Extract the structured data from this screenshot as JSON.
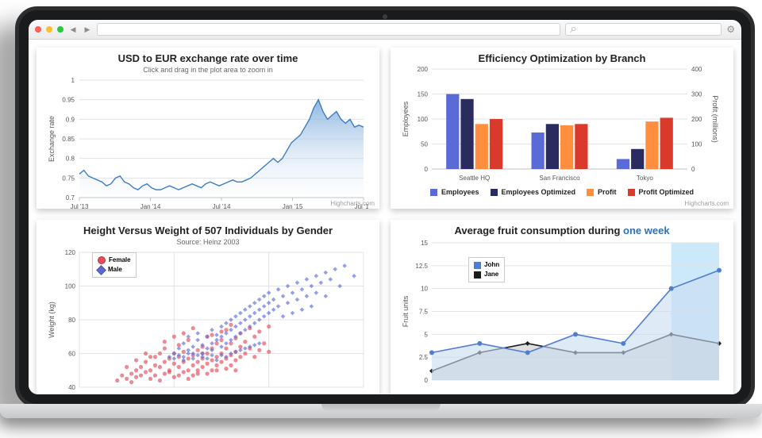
{
  "browser": {
    "dots": [
      "#ff5f57",
      "#ffbd2e",
      "#28c940"
    ],
    "search_glyph": "⌕"
  },
  "exchange": {
    "type": "area",
    "title": "USD to EUR exchange rate over time",
    "subtitle": "Click and drag in the plot area to zoom in",
    "ylabel": "Exchange rate",
    "ylabel_fontsize": 9,
    "xticks": [
      "Jul '13",
      "Jan '14",
      "Jul '14",
      "Jan '15",
      "Jul '15"
    ],
    "yticks": [
      0.7,
      0.75,
      0.8,
      0.85,
      0.9,
      0.95,
      1
    ],
    "ylim": [
      0.7,
      1.0
    ],
    "line_color": "#3e7cc0",
    "fill_top": "#7aa9da",
    "fill_bottom": "#eaf2fb",
    "grid_color": "#e2e3e4",
    "background_color": "#ffffff",
    "series": [
      0.76,
      0.77,
      0.755,
      0.75,
      0.745,
      0.74,
      0.73,
      0.735,
      0.75,
      0.755,
      0.74,
      0.735,
      0.725,
      0.72,
      0.73,
      0.735,
      0.725,
      0.72,
      0.72,
      0.725,
      0.73,
      0.725,
      0.72,
      0.725,
      0.73,
      0.735,
      0.73,
      0.725,
      0.735,
      0.74,
      0.735,
      0.73,
      0.735,
      0.74,
      0.745,
      0.74,
      0.74,
      0.745,
      0.75,
      0.76,
      0.77,
      0.78,
      0.79,
      0.8,
      0.79,
      0.8,
      0.82,
      0.84,
      0.85,
      0.86,
      0.88,
      0.9,
      0.93,
      0.95,
      0.92,
      0.9,
      0.91,
      0.92,
      0.9,
      0.89,
      0.9,
      0.88,
      0.885,
      0.88
    ],
    "credit": "Highcharts.com"
  },
  "efficiency": {
    "type": "bar",
    "title": "Efficiency Optimization by Branch",
    "ylabel_left": "Employees",
    "ylabel_right": "Profit (millions)",
    "ylim_left": [
      0,
      200
    ],
    "ytick_left": 50,
    "ylim_right": [
      0,
      400
    ],
    "ytick_right": 100,
    "categories": [
      "Seattle HQ",
      "San Francisco",
      "Tokyo"
    ],
    "series": [
      {
        "name": "Employees",
        "color": "#5a6bd8",
        "axis": "left",
        "data": [
          150,
          73,
          20
        ]
      },
      {
        "name": "Employees Optimized",
        "color": "#2a2b5f",
        "axis": "left",
        "data": [
          140,
          90,
          40
        ]
      },
      {
        "name": "Profit",
        "color": "#ff8f3e",
        "axis": "right",
        "data": [
          180,
          175,
          190
        ]
      },
      {
        "name": "Profit Optimized",
        "color": "#d93a2b",
        "axis": "right",
        "data": [
          200,
          180,
          205
        ]
      }
    ],
    "bar_width": 0.17,
    "grid_color": "#e2e3e4",
    "credit": "Highcharts.com"
  },
  "scatter": {
    "type": "scatter",
    "title": "Height Versus Weight of 507 Individuals by Gender",
    "subtitle": "Source: Heinz 2003",
    "xlabel": "",
    "ylabel": "Weight (kg)",
    "xlim": [
      140,
      200
    ],
    "xtick_step": 20,
    "ylim": [
      40,
      120
    ],
    "ytick_step": 20,
    "grid_color": "#e2e3e4",
    "legend": [
      {
        "label": "Female",
        "color": "#e74c5b",
        "marker": "circle"
      },
      {
        "label": "Male",
        "color": "#5a6bd8",
        "marker": "diamond"
      }
    ],
    "female_color": "#e74c5b",
    "male_color": "#5a6bd8",
    "female": [
      [
        150,
        45
      ],
      [
        151,
        48
      ],
      [
        152,
        50
      ],
      [
        152,
        46
      ],
      [
        153,
        52
      ],
      [
        153,
        47
      ],
      [
        154,
        55
      ],
      [
        154,
        49
      ],
      [
        155,
        50
      ],
      [
        155,
        58
      ],
      [
        156,
        53
      ],
      [
        156,
        47
      ],
      [
        157,
        60
      ],
      [
        157,
        52
      ],
      [
        158,
        55
      ],
      [
        158,
        48
      ],
      [
        158,
        63
      ],
      [
        159,
        50
      ],
      [
        159,
        57
      ],
      [
        160,
        54
      ],
      [
        160,
        60
      ],
      [
        160,
        46
      ],
      [
        161,
        58
      ],
      [
        161,
        52
      ],
      [
        161,
        65
      ],
      [
        162,
        55
      ],
      [
        162,
        49
      ],
      [
        162,
        61
      ],
      [
        163,
        57
      ],
      [
        163,
        50
      ],
      [
        163,
        68
      ],
      [
        164,
        59
      ],
      [
        164,
        53
      ],
      [
        164,
        47
      ],
      [
        165,
        62
      ],
      [
        165,
        55
      ],
      [
        165,
        50
      ],
      [
        166,
        64
      ],
      [
        166,
        57
      ],
      [
        166,
        52
      ],
      [
        167,
        60
      ],
      [
        167,
        54
      ],
      [
        167,
        70
      ],
      [
        168,
        63
      ],
      [
        168,
        56
      ],
      [
        168,
        50
      ],
      [
        169,
        66
      ],
      [
        169,
        58
      ],
      [
        169,
        53
      ],
      [
        170,
        68
      ],
      [
        170,
        60
      ],
      [
        170,
        55
      ],
      [
        171,
        63
      ],
      [
        171,
        57
      ],
      [
        171,
        74
      ],
      [
        172,
        66
      ],
      [
        172,
        59
      ],
      [
        172,
        53
      ],
      [
        173,
        69
      ],
      [
        173,
        61
      ],
      [
        173,
        56
      ],
      [
        174,
        72
      ],
      [
        174,
        64
      ],
      [
        174,
        58
      ],
      [
        175,
        67
      ],
      [
        175,
        60
      ],
      [
        176,
        75
      ],
      [
        176,
        63
      ],
      [
        177,
        70
      ],
      [
        177,
        58
      ],
      [
        178,
        73
      ],
      [
        178,
        62
      ],
      [
        179,
        66
      ],
      [
        180,
        76
      ],
      [
        180,
        61
      ],
      [
        148,
        44
      ],
      [
        149,
        47
      ],
      [
        150,
        52
      ],
      [
        151,
        43
      ],
      [
        152,
        56
      ],
      [
        154,
        60
      ],
      [
        155,
        45
      ],
      [
        156,
        58
      ],
      [
        157,
        44
      ],
      [
        158,
        67
      ],
      [
        159,
        49
      ],
      [
        160,
        70
      ],
      [
        161,
        47
      ],
      [
        162,
        72
      ],
      [
        163,
        45
      ],
      [
        164,
        75
      ],
      [
        165,
        48
      ],
      [
        166,
        60
      ],
      [
        167,
        48
      ],
      [
        168,
        71
      ],
      [
        169,
        50
      ],
      [
        170,
        73
      ],
      [
        171,
        51
      ],
      [
        172,
        77
      ],
      [
        173,
        50
      ]
    ],
    "male": [
      [
        160,
        60
      ],
      [
        161,
        63
      ],
      [
        162,
        58
      ],
      [
        162,
        66
      ],
      [
        163,
        62
      ],
      [
        163,
        70
      ],
      [
        164,
        64
      ],
      [
        164,
        60
      ],
      [
        165,
        68
      ],
      [
        165,
        72
      ],
      [
        166,
        65
      ],
      [
        166,
        60
      ],
      [
        167,
        70
      ],
      [
        167,
        63
      ],
      [
        168,
        74
      ],
      [
        168,
        66
      ],
      [
        168,
        62
      ],
      [
        169,
        71
      ],
      [
        169,
        68
      ],
      [
        170,
        76
      ],
      [
        170,
        70
      ],
      [
        170,
        64
      ],
      [
        171,
        78
      ],
      [
        171,
        72
      ],
      [
        171,
        66
      ],
      [
        172,
        80
      ],
      [
        172,
        74
      ],
      [
        172,
        68
      ],
      [
        173,
        82
      ],
      [
        173,
        76
      ],
      [
        173,
        70
      ],
      [
        174,
        84
      ],
      [
        174,
        78
      ],
      [
        174,
        72
      ],
      [
        175,
        86
      ],
      [
        175,
        80
      ],
      [
        175,
        74
      ],
      [
        176,
        88
      ],
      [
        176,
        82
      ],
      [
        176,
        76
      ],
      [
        177,
        90
      ],
      [
        177,
        84
      ],
      [
        177,
        78
      ],
      [
        178,
        92
      ],
      [
        178,
        86
      ],
      [
        178,
        80
      ],
      [
        179,
        94
      ],
      [
        179,
        88
      ],
      [
        179,
        82
      ],
      [
        180,
        96
      ],
      [
        180,
        90
      ],
      [
        180,
        84
      ],
      [
        181,
        92
      ],
      [
        181,
        86
      ],
      [
        182,
        98
      ],
      [
        182,
        88
      ],
      [
        183,
        94
      ],
      [
        183,
        82
      ],
      [
        184,
        100
      ],
      [
        184,
        90
      ],
      [
        185,
        96
      ],
      [
        185,
        84
      ],
      [
        186,
        102
      ],
      [
        186,
        92
      ],
      [
        187,
        98
      ],
      [
        187,
        86
      ],
      [
        188,
        104
      ],
      [
        188,
        94
      ],
      [
        189,
        100
      ],
      [
        189,
        88
      ],
      [
        190,
        106
      ],
      [
        190,
        96
      ],
      [
        191,
        102
      ],
      [
        192,
        108
      ],
      [
        192,
        94
      ],
      [
        193,
        104
      ],
      [
        194,
        110
      ],
      [
        195,
        100
      ],
      [
        196,
        112
      ],
      [
        198,
        106
      ],
      [
        159,
        58
      ],
      [
        160,
        57
      ],
      [
        161,
        59
      ],
      [
        162,
        56
      ],
      [
        163,
        60
      ],
      [
        164,
        57
      ],
      [
        165,
        59
      ],
      [
        166,
        58
      ],
      [
        167,
        57
      ],
      [
        168,
        59
      ],
      [
        169,
        56
      ],
      [
        170,
        59
      ],
      [
        171,
        58
      ],
      [
        172,
        60
      ],
      [
        173,
        61
      ],
      [
        174,
        62
      ],
      [
        175,
        63
      ],
      [
        176,
        64
      ],
      [
        177,
        65
      ],
      [
        178,
        66
      ]
    ]
  },
  "fruit": {
    "type": "area",
    "title_prefix": "Average fruit consumption during ",
    "title_link": "one week",
    "ylabel": "Fruit units",
    "highlight_color": "#bfe4f7",
    "xlim": [
      0,
      6
    ],
    "ylim": [
      0,
      15
    ],
    "ytick_step": 2.5,
    "grid_color": "#e2e3e4",
    "highlight_from": 5,
    "legend": [
      {
        "label": "John",
        "color": "#4f7ecf"
      },
      {
        "label": "Jane",
        "color": "#1c1c1c"
      }
    ],
    "series": [
      {
        "name": "John",
        "color": "#4f7ecf",
        "fill": "#c9dcf2",
        "marker": "circle",
        "data": [
          3,
          4,
          3,
          5,
          4,
          10,
          12
        ]
      },
      {
        "name": "Jane",
        "color": "#1c1c1c",
        "fill": "#c8c9ca",
        "marker": "diamond",
        "data": [
          1,
          3,
          4,
          3,
          3,
          5,
          4
        ]
      }
    ]
  }
}
